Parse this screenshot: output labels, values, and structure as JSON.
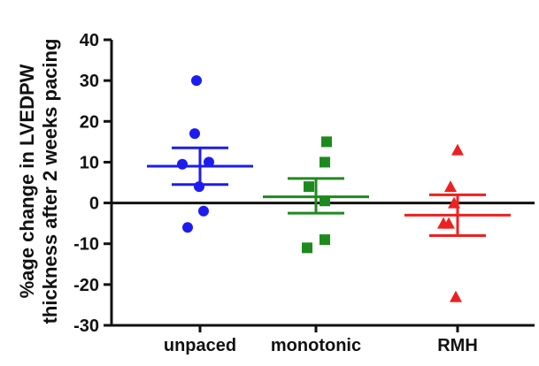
{
  "chart_data": {
    "type": "scatter",
    "ylabel_line1": "%age change in LVEDPW",
    "ylabel_line2": "thickness after 2 weeks pacing",
    "xlabel": "",
    "title": "",
    "ylim": [
      -30,
      40
    ],
    "yticks": [
      40,
      30,
      20,
      10,
      0,
      -10,
      -20,
      -30
    ],
    "categories": [
      "unpaced",
      "monotonic",
      "RMH"
    ],
    "grid": false,
    "zero_line": true,
    "groups": [
      {
        "category": "unpaced",
        "marker": "circle",
        "color": "#1c1cf0",
        "values": [
          30,
          17,
          9.5,
          10,
          4,
          -2,
          -6
        ],
        "mean": 9,
        "sem_upper": 13.5,
        "sem_lower": 4.5
      },
      {
        "category": "monotonic",
        "marker": "square",
        "color": "#1e8a1e",
        "values": [
          15,
          10,
          4,
          0.5,
          -9,
          -11
        ],
        "mean": 1.5,
        "sem_upper": 6,
        "sem_lower": -2.5
      },
      {
        "category": "RMH",
        "marker": "triangle",
        "color": "#ee2020",
        "values": [
          13,
          4,
          0,
          -5,
          -5,
          -23
        ],
        "mean": -3,
        "sem_upper": 2,
        "sem_lower": -8
      }
    ]
  }
}
